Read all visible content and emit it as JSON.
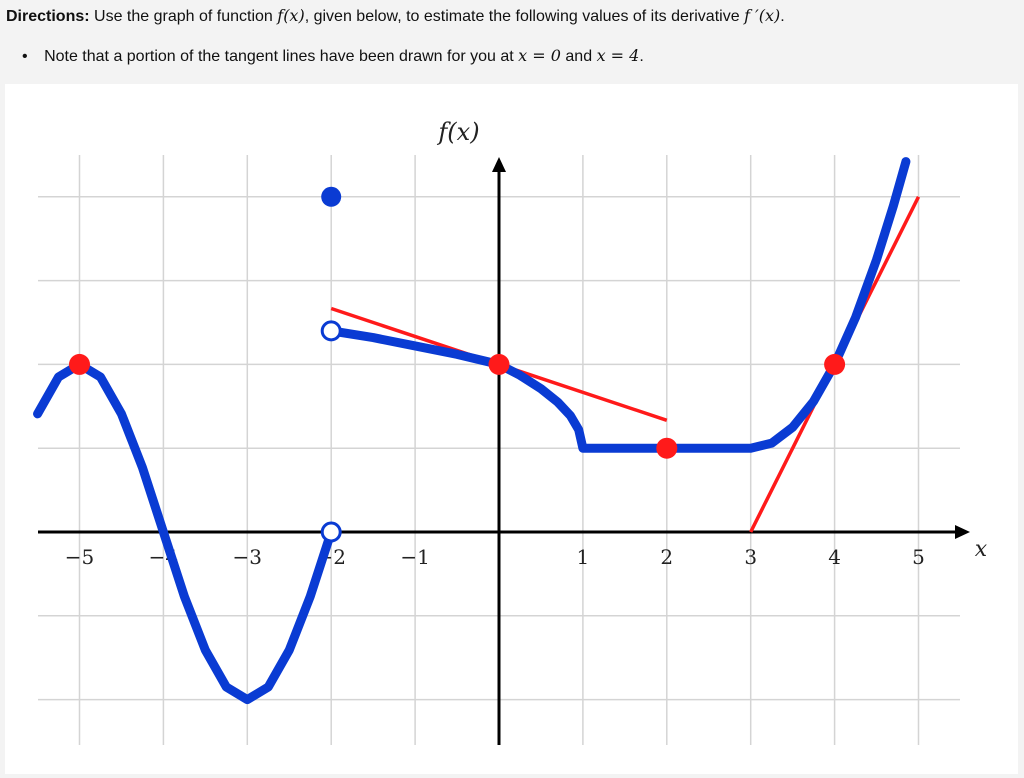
{
  "directions": {
    "label": "Directions:",
    "text_before": "Use the graph of function",
    "f_expr": "f(x)",
    "text_after": ", given below, to estimate the following values of its derivative",
    "fprime_expr": "f ′(x)",
    "end": "."
  },
  "note": {
    "text_before": "Note that a portion of the tangent lines have been drawn for you at",
    "eq1": "x = 0",
    "and": "and",
    "eq2": "x = 4",
    "end": "."
  },
  "chart_data": {
    "type": "line",
    "title": "f(x)",
    "xlabel": "x",
    "ylabel": "f(x)",
    "xlim": [
      -5.5,
      5.5
    ],
    "ylim": [
      -2.5,
      4.5
    ],
    "grid": true,
    "x_ticks": [
      "−5",
      "−4",
      "−3",
      "−2",
      "−1",
      "1",
      "2",
      "3",
      "4",
      "5"
    ],
    "x_tick_values": [
      -5,
      -4,
      -3,
      -2,
      -1,
      1,
      2,
      3,
      4,
      5
    ],
    "colors": {
      "curve": "#0a3bd3",
      "tangent": "#ff1a1a",
      "points": "#ff1a1a",
      "grid": "#d4d4d4"
    },
    "series": [
      {
        "piece": "left",
        "points": [
          [
            -5.5,
            1.41
          ],
          [
            -5.25,
            1.85
          ],
          [
            -5,
            2
          ],
          [
            -4.75,
            1.85
          ],
          [
            -4.5,
            1.41
          ],
          [
            -4.25,
            0.77
          ],
          [
            -4,
            0
          ],
          [
            -3.75,
            -0.77
          ],
          [
            -3.5,
            -1.41
          ],
          [
            -3.25,
            -1.85
          ],
          [
            -3,
            -2
          ],
          [
            -2.75,
            -1.85
          ],
          [
            -2.5,
            -1.41
          ],
          [
            -2.25,
            -0.77
          ],
          [
            -2,
            0
          ]
        ]
      },
      {
        "piece": "middle",
        "points": [
          [
            -2,
            2.4
          ],
          [
            -1.5,
            2.32
          ],
          [
            -1,
            2.22
          ],
          [
            -0.5,
            2.12
          ],
          [
            0,
            2
          ],
          [
            0.25,
            1.87
          ],
          [
            0.5,
            1.71
          ],
          [
            0.7,
            1.55
          ],
          [
            0.85,
            1.39
          ],
          [
            0.95,
            1.22
          ],
          [
            1,
            1
          ],
          [
            3,
            1
          ],
          [
            3.25,
            1.06
          ],
          [
            3.5,
            1.25
          ],
          [
            3.75,
            1.56
          ],
          [
            4,
            2
          ],
          [
            4.25,
            2.56
          ],
          [
            4.5,
            3.25
          ],
          [
            4.7,
            3.89
          ],
          [
            4.85,
            4.42
          ]
        ]
      }
    ],
    "open_points": [
      [
        -2,
        0
      ],
      [
        -2,
        2.4
      ]
    ],
    "closed_blue_points": [
      [
        -2,
        4
      ]
    ],
    "red_points": [
      [
        -5,
        2
      ],
      [
        0,
        2
      ],
      [
        2,
        1
      ],
      [
        4,
        2
      ]
    ],
    "tangent_lines": [
      {
        "at_x": 0,
        "from": [
          -2,
          2.667
        ],
        "to": [
          2,
          1.333
        ],
        "slope": -0.333
      },
      {
        "at_x": 4,
        "from": [
          3,
          0
        ],
        "to": [
          5,
          4
        ],
        "slope": 2
      }
    ]
  }
}
